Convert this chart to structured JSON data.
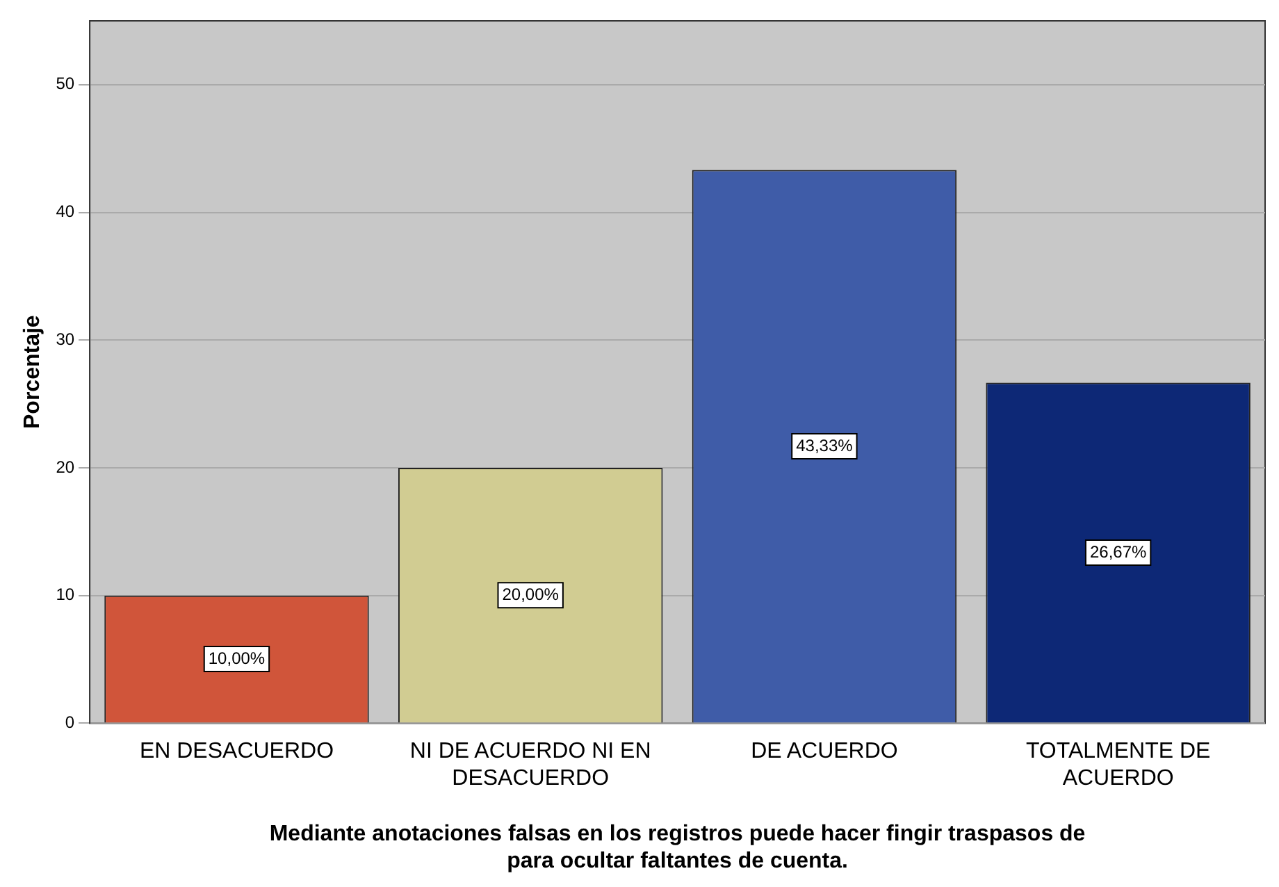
{
  "chart_data": {
    "type": "bar",
    "ylabel": "Porcentaje",
    "xlabel": "Mediante anotaciones falsas en los registros puede hacer fingir traspasos de para ocultar faltantes de cuenta.",
    "categories": [
      "EN DESACUERDO",
      "NI DE ACUERDO NI EN DESACUERDO",
      "DE ACUERDO",
      "TOTALMENTE DE ACUERDO"
    ],
    "values": [
      10,
      20,
      43.33,
      26.67
    ],
    "colors": [
      "#d0553a",
      "#d1cc92",
      "#3f5ca8",
      "#0d2876"
    ],
    "value_labels": [
      "10,00%",
      "20,00%",
      "43,33%",
      "26,67%"
    ],
    "ylim": [
      0,
      55
    ],
    "yticks": [
      0,
      10,
      20,
      30,
      40,
      50
    ],
    "grid": "y",
    "legend": false
  }
}
